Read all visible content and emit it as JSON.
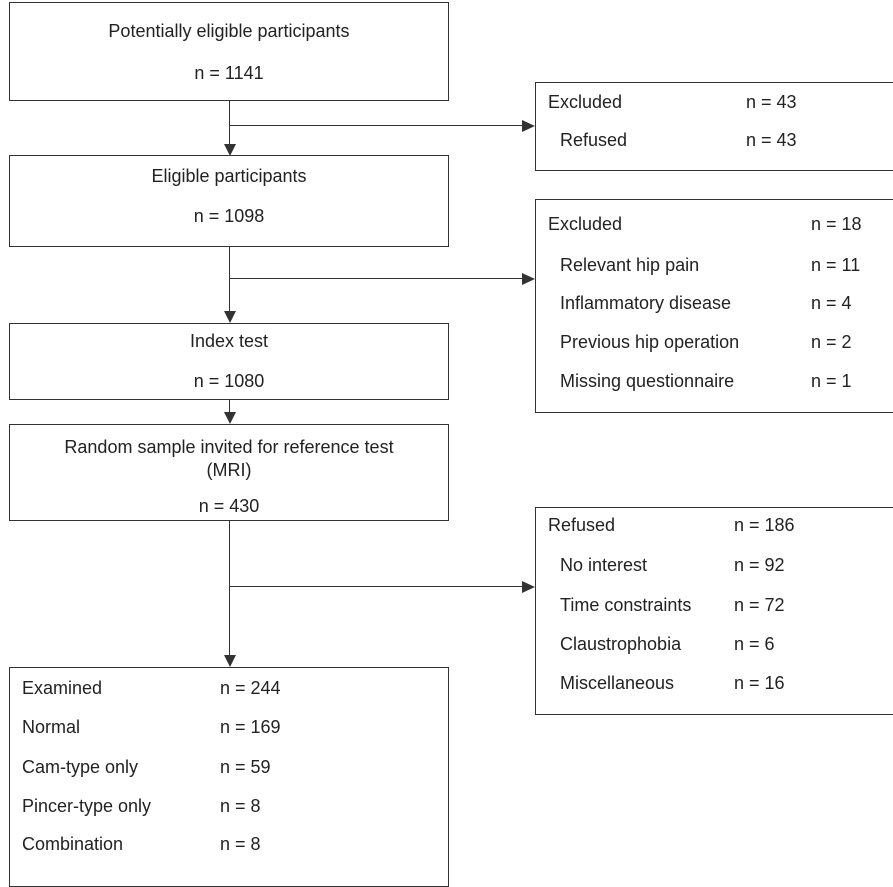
{
  "flow": {
    "potentially_eligible": {
      "title": "Potentially eligible participants",
      "n": "n = 1141"
    },
    "excluded_1": {
      "title": "Excluded",
      "n": "n = 43",
      "items": [
        {
          "label": "Refused",
          "n": "n = 43"
        }
      ]
    },
    "eligible": {
      "title": "Eligible participants",
      "n": "n = 1098"
    },
    "excluded_2": {
      "title": "Excluded",
      "n": "n = 18",
      "items": [
        {
          "label": "Relevant hip pain",
          "n": "n = 11"
        },
        {
          "label": "Inflammatory disease",
          "n": "n = 4"
        },
        {
          "label": "Previous hip operation",
          "n": "n = 2"
        },
        {
          "label": "Missing questionnaire",
          "n": "n = 1"
        }
      ]
    },
    "index_test": {
      "title": "Index test",
      "n": "n = 1080"
    },
    "random_sample": {
      "title_line1": "Random sample invited for reference test",
      "title_line2": "(MRI)",
      "n": "n = 430"
    },
    "refused": {
      "title": "Refused",
      "n": "n = 186",
      "items": [
        {
          "label": "No interest",
          "n": "n = 92"
        },
        {
          "label": "Time constraints",
          "n": "n = 72"
        },
        {
          "label": "Claustrophobia",
          "n": "n = 6"
        },
        {
          "label": "Miscellaneous",
          "n": "n = 16"
        }
      ]
    },
    "examined": {
      "rows": [
        {
          "label": "Examined",
          "n": "n = 244"
        },
        {
          "label": "Normal",
          "n": "n = 169"
        },
        {
          "label": "Cam-type only",
          "n": "n = 59"
        },
        {
          "label": "Pincer-type only",
          "n": "n = 8"
        },
        {
          "label": "Combination",
          "n": "n = 8"
        }
      ]
    }
  }
}
